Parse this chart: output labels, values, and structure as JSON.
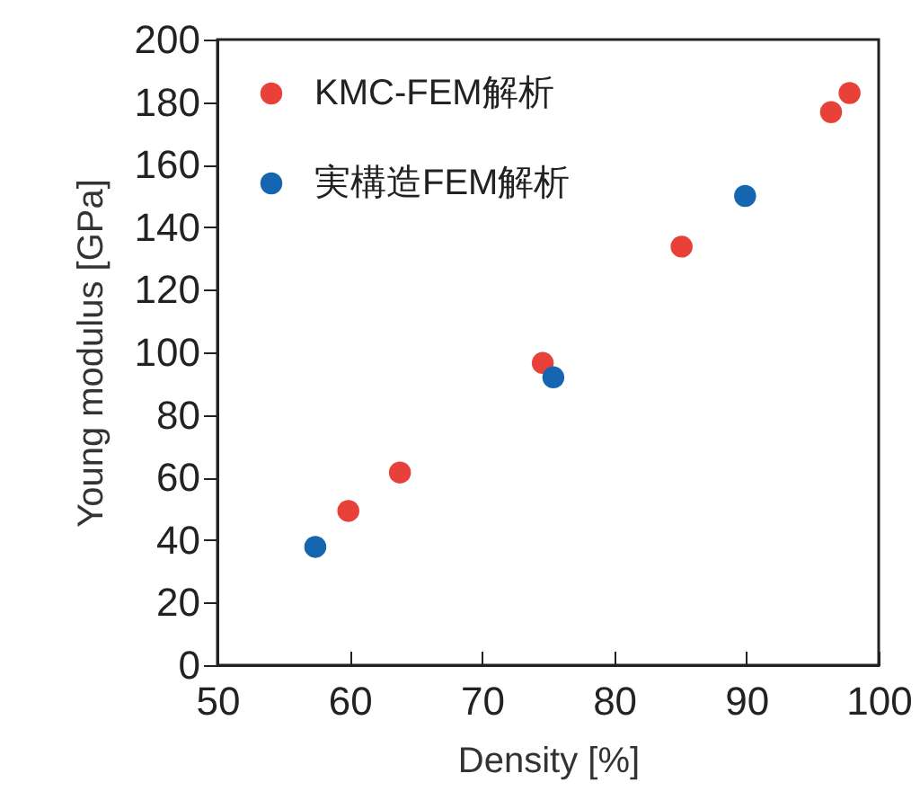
{
  "chart_data": {
    "type": "scatter",
    "xlabel": "Density [%]",
    "ylabel": "Young modulus [GPa]",
    "series": [
      {
        "name": "KMC-FEM解析",
        "color": "#e8413a",
        "x": [
          59.9,
          63.8,
          74.6,
          85.1,
          96.4,
          97.8
        ],
        "values": [
          49.3,
          61.6,
          96.6,
          133.8,
          176.8,
          182.9
        ]
      },
      {
        "name": "実構造FEM解析",
        "color": "#1565b0",
        "x": [
          57.4,
          75.4,
          89.9
        ],
        "values": [
          37.8,
          92.0,
          150
        ]
      }
    ],
    "xlim": [
      50,
      100
    ],
    "xticks": [
      50,
      60,
      70,
      80,
      90,
      100
    ],
    "ylim": [
      0,
      200
    ],
    "yticks": [
      0,
      20,
      40,
      60,
      80,
      100,
      120,
      140,
      160,
      180,
      200
    ],
    "marker": "circle",
    "grid": false,
    "legend": "top left"
  }
}
